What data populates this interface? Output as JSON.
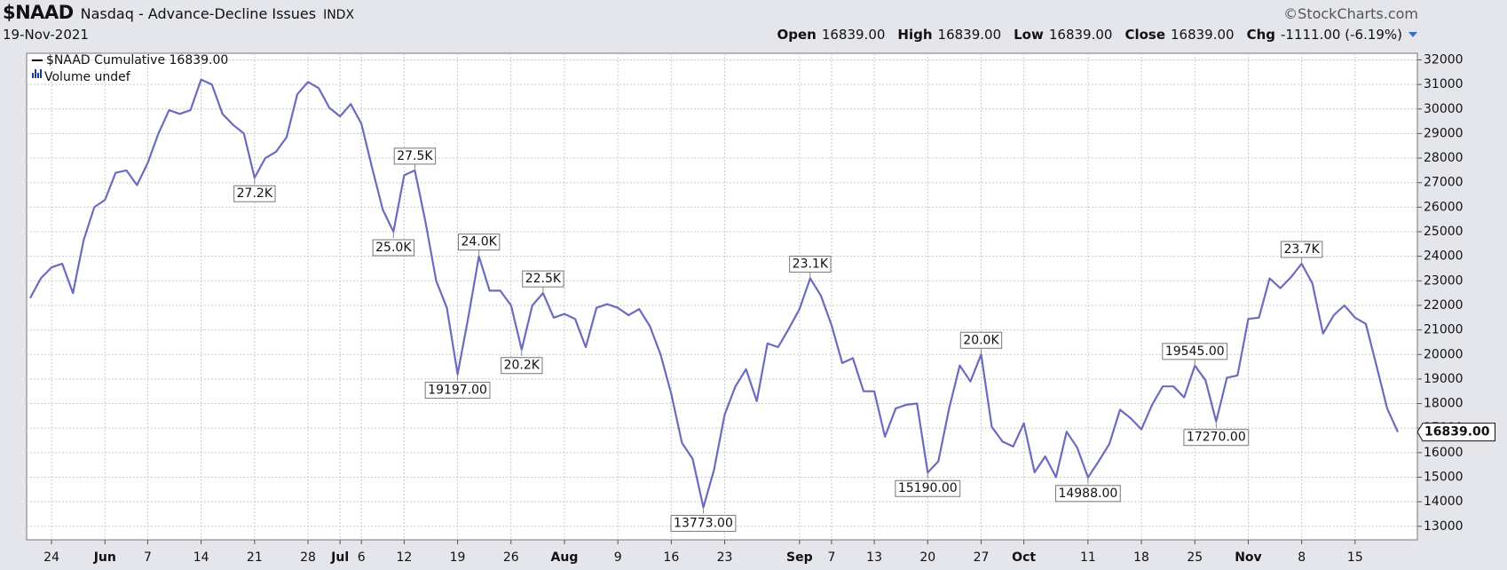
{
  "header": {
    "symbol": "$NAAD",
    "name": "Nasdaq - Advance-Decline Issues",
    "exchange": "INDX",
    "brand": "©StockCharts.com",
    "date": "19-Nov-2021",
    "quotes": [
      {
        "label": "Open",
        "value": "16839.00"
      },
      {
        "label": "High",
        "value": "16839.00"
      },
      {
        "label": "Low",
        "value": "16839.00"
      },
      {
        "label": "Close",
        "value": "16839.00"
      },
      {
        "label": "Chg",
        "value": "-1111.00 (-6.19%)"
      }
    ]
  },
  "chart_data": {
    "type": "line",
    "categories": [
      null,
      null,
      "24",
      null,
      null,
      null,
      null,
      "Jun",
      null,
      null,
      null,
      "7",
      null,
      null,
      null,
      null,
      "14",
      null,
      null,
      null,
      null,
      "21",
      null,
      null,
      null,
      null,
      "28",
      null,
      null,
      "Jul",
      null,
      "6",
      null,
      null,
      null,
      "12",
      null,
      null,
      null,
      null,
      "19",
      null,
      null,
      null,
      null,
      "26",
      null,
      null,
      null,
      null,
      "Aug",
      null,
      null,
      null,
      null,
      "9",
      null,
      null,
      null,
      null,
      "16",
      null,
      null,
      null,
      null,
      "23",
      null,
      null,
      null,
      null,
      null,
      null,
      "Sep",
      null,
      null,
      "7",
      null,
      null,
      null,
      "13",
      null,
      null,
      null,
      null,
      "20",
      null,
      null,
      null,
      null,
      "27",
      null,
      null,
      null,
      "Oct",
      null,
      null,
      null,
      null,
      null,
      "11",
      null,
      null,
      null,
      null,
      "18",
      null,
      null,
      null,
      null,
      "25",
      null,
      null,
      null,
      null,
      "Nov",
      null,
      null,
      null,
      null,
      "8",
      null,
      null,
      null,
      null,
      "15",
      null,
      null,
      null,
      null
    ],
    "series": [
      {
        "name": "$NAAD Cumulative 16839.00",
        "color": "#6b6bbf",
        "values": [
          22300,
          23100,
          23550,
          23700,
          22500,
          24650,
          26000,
          26300,
          27400,
          27500,
          26900,
          27800,
          29000,
          29950,
          29800,
          29950,
          31200,
          31000,
          29800,
          29350,
          29000,
          27200,
          28000,
          28250,
          28850,
          30600,
          31100,
          30850,
          30050,
          29700,
          30200,
          29400,
          27600,
          25900,
          25000,
          27300,
          27500,
          25400,
          23000,
          21900,
          19197,
          21500,
          24000,
          22600,
          22600,
          22000,
          20200,
          22000,
          22500,
          21500,
          21650,
          21450,
          20300,
          21900,
          22050,
          21900,
          21600,
          21850,
          21150,
          20000,
          18400,
          16400,
          15750,
          13773,
          15300,
          17550,
          18700,
          19400,
          18100,
          20450,
          20300,
          21050,
          21850,
          23100,
          22400,
          21200,
          19650,
          19850,
          18500,
          18500,
          16650,
          17800,
          17950,
          18000,
          15190,
          15650,
          17800,
          19550,
          18900,
          20000,
          17050,
          16450,
          16250,
          17200,
          15200,
          15850,
          15000,
          16850,
          16200,
          14988,
          15650,
          16350,
          17750,
          17400,
          16950,
          17950,
          18700,
          18700,
          18250,
          19545,
          18950,
          17270,
          19050,
          19150,
          21450,
          21500,
          23100,
          22700,
          23150,
          23700,
          22900,
          20850,
          21600,
          22000,
          21500,
          21250,
          19550,
          17800,
          16839
        ],
        "value_labels": [
          null,
          null,
          null,
          null,
          null,
          null,
          null,
          null,
          null,
          null,
          null,
          null,
          null,
          null,
          null,
          null,
          null,
          null,
          null,
          null,
          null,
          "27.2K",
          null,
          null,
          null,
          null,
          null,
          null,
          null,
          null,
          null,
          null,
          null,
          null,
          "25.0K",
          null,
          "27.5K",
          null,
          null,
          null,
          "19197.00",
          null,
          "24.0K",
          null,
          null,
          null,
          "20.2K",
          null,
          "22.5K",
          null,
          null,
          null,
          null,
          null,
          null,
          null,
          null,
          null,
          null,
          null,
          null,
          null,
          null,
          "13773.00",
          null,
          null,
          null,
          null,
          null,
          null,
          null,
          null,
          null,
          "23.1K",
          null,
          null,
          null,
          null,
          null,
          null,
          null,
          null,
          null,
          null,
          "15190.00",
          null,
          null,
          null,
          null,
          "20.0K",
          null,
          null,
          null,
          null,
          null,
          null,
          null,
          null,
          null,
          "14988.00",
          null,
          null,
          null,
          null,
          null,
          null,
          null,
          null,
          null,
          "19545.00",
          null,
          "17270.00",
          null,
          null,
          null,
          null,
          null,
          null,
          null,
          "23.7K",
          null,
          null,
          null,
          null,
          null,
          null,
          null,
          null,
          null
        ],
        "last_label": "16839.00"
      }
    ],
    "volume_legend": "Volume undef",
    "ylim": [
      12450,
      32270
    ],
    "yticks": [
      13000,
      14000,
      15000,
      16000,
      17000,
      18000,
      19000,
      20000,
      21000,
      22000,
      23000,
      24000,
      25000,
      26000,
      27000,
      28000,
      29000,
      30000,
      31000,
      32000
    ],
    "grid": true
  }
}
